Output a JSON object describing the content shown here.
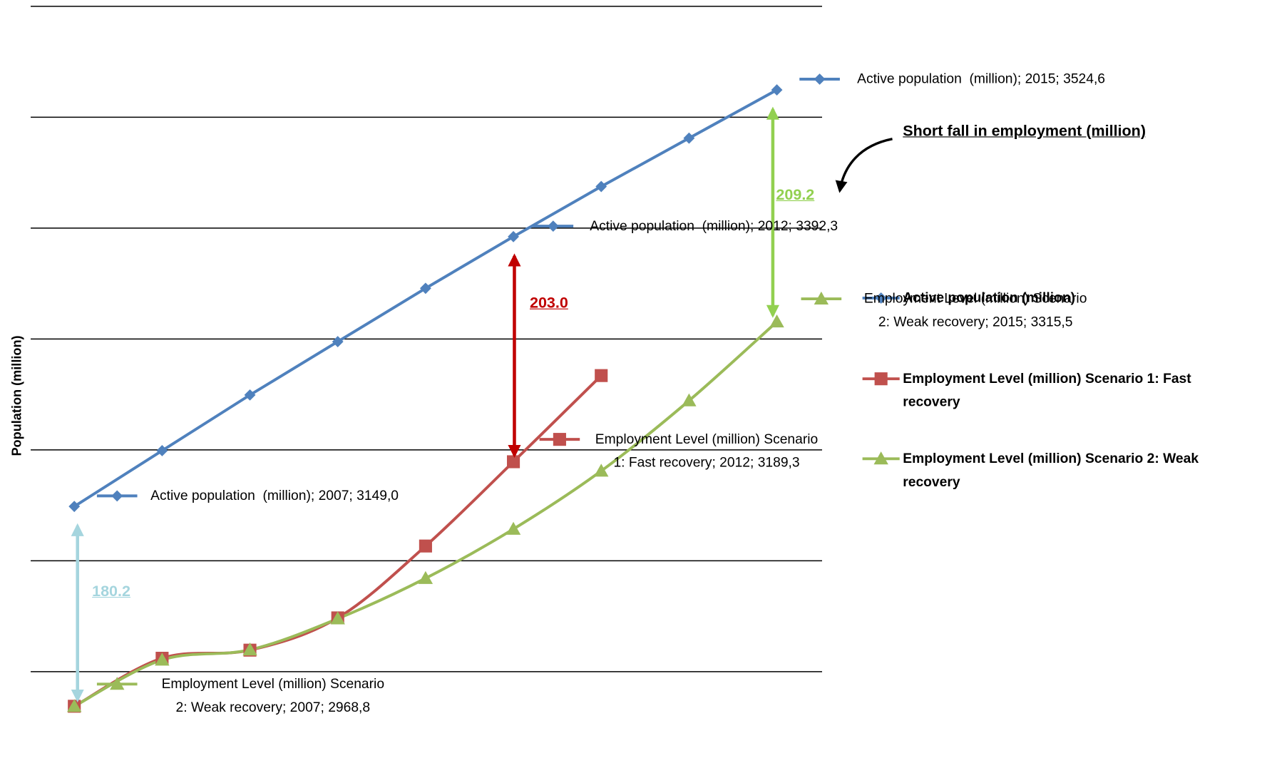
{
  "chart_data": {
    "type": "line",
    "y_label": "Population (million)",
    "categories": [
      null,
      null,
      null,
      null,
      null,
      null,
      null,
      null,
      null
    ],
    "ylim": [
      2900,
      3600
    ],
    "yticks": [
      3000,
      3100,
      3200,
      3300,
      3400,
      3500,
      3600
    ],
    "grid": true,
    "legend": "right",
    "series": [
      {
        "name": "Active population (million)",
        "color": "#4f81bd",
        "marker": "diamond",
        "smooth": false,
        "values": [
          3149.0,
          3199.3,
          3249.5,
          3297.6,
          3345.7,
          3392.3,
          3437.5,
          3481.1,
          3524.6
        ],
        "value_labels": [
          "Active population  (million); 2007; 3149,0",
          null,
          null,
          null,
          null,
          "Active population  (million); 2012; 3392,3",
          null,
          null,
          "Active population  (million); 2015; 3524,6"
        ]
      },
      {
        "name": "Employment Level (million) Scenario 1: Fast recovery",
        "color": "#c0504d",
        "marker": "square",
        "smooth": true,
        "values": [
          2968.8,
          3012.1,
          3019.4,
          3048.5,
          3113.3,
          3189.3,
          3267.0,
          null,
          null
        ],
        "value_labels": [
          null,
          null,
          null,
          null,
          null,
          "Employment Level (million) Scenario 1: Fast recovery; 2012; 3189,3",
          null,
          null,
          null
        ]
      },
      {
        "name": "Employment Level (million) Scenario 2: Weak recovery",
        "color": "#9bbb59",
        "marker": "triangle",
        "smooth": true,
        "values": [
          2968.8,
          3010.6,
          3019.7,
          3047.8,
          3084.2,
          3128.6,
          3181.0,
          3244.4,
          3315.5
        ],
        "value_labels": [
          "Employment Level (million) Scenario 2: Weak recovery; 2007; 2968,8",
          null,
          null,
          null,
          null,
          null,
          null,
          null,
          "Employment Level (million) Scenario 2: Weak recovery; 2015; 3315,5"
        ]
      }
    ],
    "shortfall": {
      "title": "Short fall in employment (million)",
      "values": [
        180.2,
        203.0,
        209.2
      ],
      "value_labels": [
        "180.2",
        "203.0",
        "209.2"
      ],
      "colors": [
        "#a5d5de",
        "#c00000",
        "#92d050"
      ]
    }
  }
}
